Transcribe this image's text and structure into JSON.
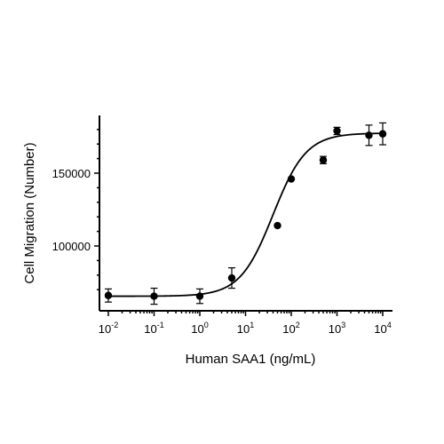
{
  "chart_data": {
    "type": "scatter",
    "xscale": "log",
    "xlabel": "Human SAA1 (ng/mL)",
    "ylabel": "Cell Migration (Number)",
    "xlim": [
      0.01,
      10000
    ],
    "ylim": [
      60000,
      185000
    ],
    "x_ticks": [
      {
        "value": 0.01,
        "base": "10",
        "exp": "-2"
      },
      {
        "value": 0.1,
        "base": "10",
        "exp": "-1"
      },
      {
        "value": 1,
        "base": "10",
        "exp": "0"
      },
      {
        "value": 10,
        "base": "10",
        "exp": "1"
      },
      {
        "value": 100,
        "base": "10",
        "exp": "2"
      },
      {
        "value": 1000,
        "base": "10",
        "exp": "3"
      },
      {
        "value": 10000,
        "base": "10",
        "exp": "4"
      }
    ],
    "y_ticks": [
      {
        "value": 100000,
        "label": "100000"
      },
      {
        "value": 150000,
        "label": "150000"
      }
    ],
    "grid": false,
    "series": [
      {
        "points": [
          {
            "x": 0.01,
            "y": 66000,
            "err": 4500
          },
          {
            "x": 0.1,
            "y": 65500,
            "err": 5500
          },
          {
            "x": 1,
            "y": 65500,
            "err": 5000
          },
          {
            "x": 5,
            "y": 78000,
            "err": 7000
          },
          {
            "x": 50,
            "y": 114000,
            "err": 0
          },
          {
            "x": 100,
            "y": 146000,
            "err": 0
          },
          {
            "x": 500,
            "y": 159000,
            "err": 2500
          },
          {
            "x": 1000,
            "y": 179000,
            "err": 2500
          },
          {
            "x": 5000,
            "y": 176000,
            "err": 7000
          },
          {
            "x": 10000,
            "y": 177000,
            "err": 7500
          }
        ]
      }
    ],
    "fit": {
      "model": "four-parameter logistic",
      "bottom": 65500,
      "top": 177500,
      "ec50": 40,
      "hill": 1.2
    }
  }
}
